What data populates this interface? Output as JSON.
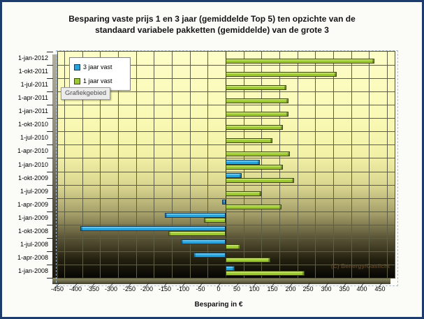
{
  "window": {
    "border_color": "#1d3c6e",
    "background": "#fbfbf8"
  },
  "header": {
    "line1": "Besparing vaste prijs 1 en 3 jaar (gemiddelde Top 5) ten opzichte van de",
    "line2": "standaard variabele pakketten (gemiddelde) van de grote 3"
  },
  "tooltip": {
    "text": "Grafiekgebied"
  },
  "watermark": {
    "text": "(C) Benergy/Gaslicht"
  },
  "chart_data": {
    "type": "bar",
    "orientation": "horizontal",
    "title": "Besparing vaste prijs 1 en 3 jaar (gemiddelde Top 5) ten opzichte van de standaard variabele pakketten (gemiddelde) van de grote 3",
    "xlabel": "Besparing in €",
    "xlim": [
      -450,
      450
    ],
    "xtick_step": 50,
    "grid": {
      "vertical": true,
      "horizontal_category_lines": true
    },
    "legend_position": "inside-top-left",
    "wall_gradient": [
      "#fdfdc8",
      "#070604"
    ],
    "categories": [
      "1-jan-2012",
      "1-okt-2011",
      "1-jul-2011",
      "1-apr-2011",
      "1-jan-2011",
      "1-okt-2010",
      "1-jul-2010",
      "1-apr-2010",
      "1-jan-2010",
      "1-okt-2009",
      "1-jul-2009",
      "1-apr-2009",
      "1-jan-2009",
      "1-okt-2008",
      "1-jul-2008",
      "1-apr-2008",
      "1-jan-2008"
    ],
    "series": [
      {
        "name": "3 jaar vast",
        "color": "#27a3dc",
        "highlight": "#7fd0ef",
        "border": "#123c5e",
        "values": [
          null,
          null,
          null,
          null,
          null,
          null,
          null,
          null,
          95,
          45,
          null,
          -10,
          -170,
          -405,
          -125,
          -90,
          25
        ]
      },
      {
        "name": "1 jaar vast",
        "color": "#9cc832",
        "highlight": "#cfe57f",
        "border": "#3c480c",
        "values": [
          415,
          310,
          170,
          175,
          175,
          160,
          130,
          180,
          160,
          190,
          100,
          155,
          -60,
          -160,
          40,
          125,
          220
        ]
      }
    ]
  }
}
